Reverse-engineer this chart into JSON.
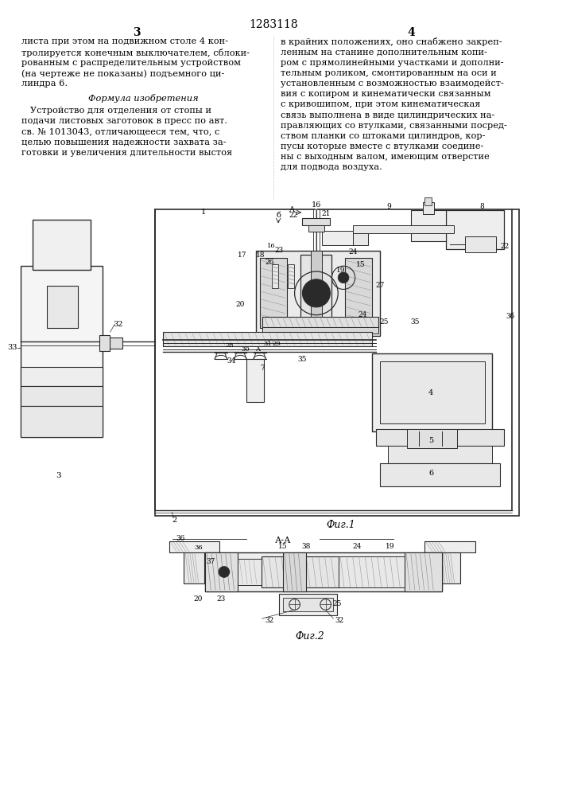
{
  "patent_number": "1283118",
  "page_left": "3",
  "page_right": "4",
  "col_left_text": [
    "листа при этом на подвижном столе 4 кон-",
    "тролируется конечным выключателем, сблоки-",
    "рованным с распределительным устройством",
    "(на чертеже не показаны) подъемного ци-",
    "линдра 6."
  ],
  "formula_title": "Формула изобретения",
  "formula_text": [
    "   Устройство для отделения от стопы и",
    "подачи листовых заготовок в пресс по авт.",
    "св. № 1013043, отличающееся тем, что, с",
    "целью повышения надежности захвата за-",
    "готовки и увеличения длительности выстоя"
  ],
  "col_right_text": [
    "в крайних положениях, оно снабжено закреп-",
    "ленным на станине дополнительным копи-",
    "ром с прямолинейными участками и дополни-",
    "тельным роликом, смонтированным на оси и",
    "установленным с возможностью взаимодейст-",
    "вия с копиром и кинематически связанным",
    "с кривошипом, при этом кинематическая",
    "связь выполнена в виде цилиндрических на-",
    "правляющих со втулками, связанными посред-",
    "ством планки со штоками цилиндров, кор-",
    "пусы которые вместе с втулками соедине-",
    "ны с выходным валом, имеющим отверстие",
    "для подвода воздуха."
  ],
  "fig1_caption": "Фиг.1",
  "fig2_caption": "Фиг.2",
  "fig2_section": "А-А",
  "bg_color": "#ffffff",
  "text_color": "#000000",
  "line_color": "#2a2a2a"
}
